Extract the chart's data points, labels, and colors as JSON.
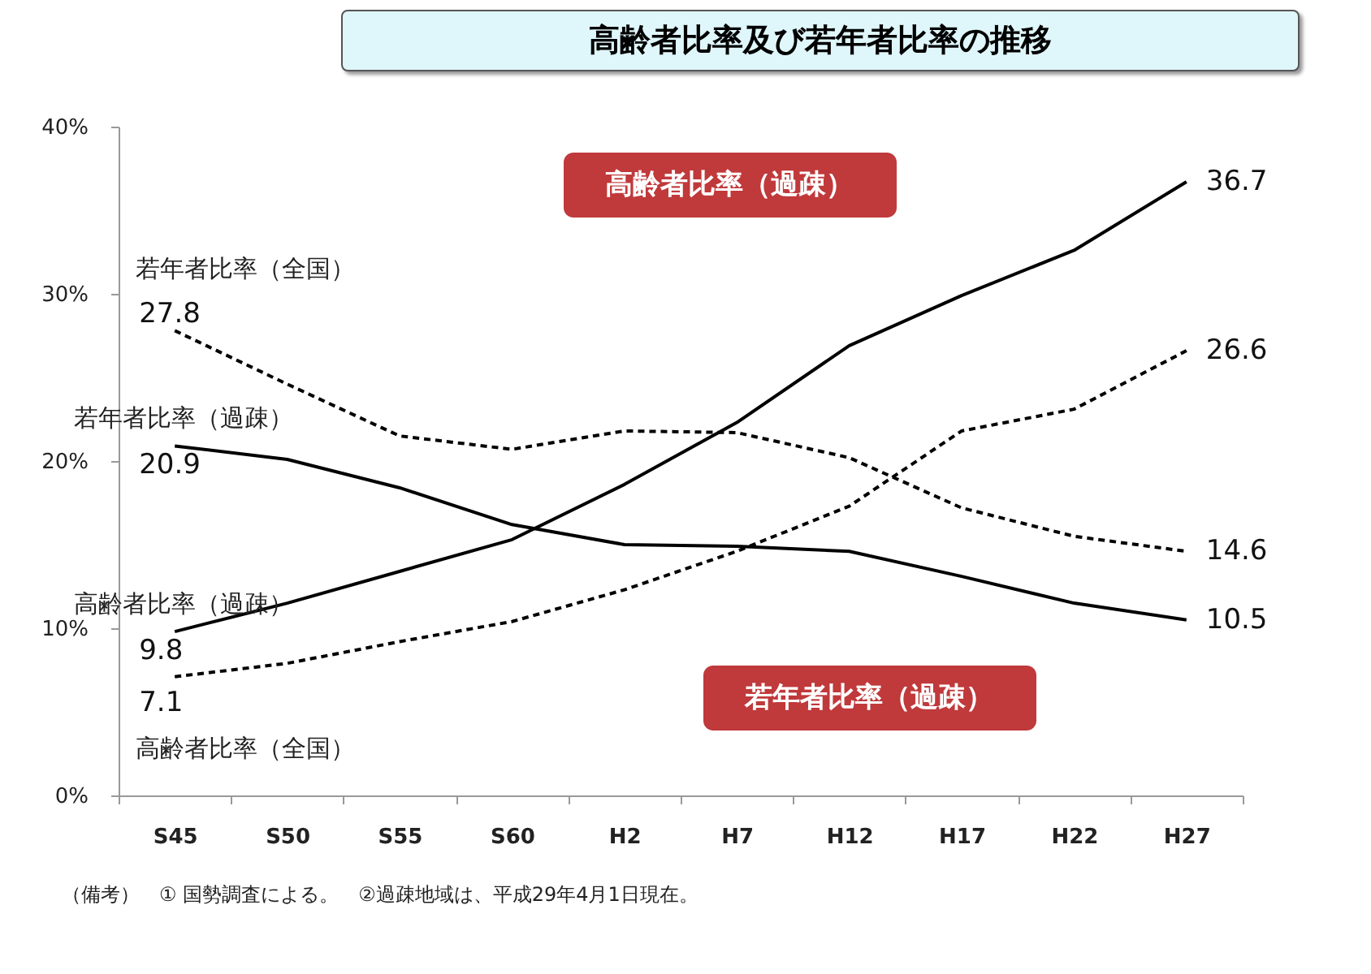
{
  "chart_data": {
    "type": "line",
    "title": "高齢者比率及び若年者比率の推移",
    "categories": [
      "S45",
      "S50",
      "S55",
      "S60",
      "H2",
      "H7",
      "H12",
      "H17",
      "H22",
      "H27"
    ],
    "ylim": [
      0,
      40
    ],
    "yticks": [
      {
        "value": 0,
        "label": "0%"
      },
      {
        "value": 10,
        "label": "10%"
      },
      {
        "value": 20,
        "label": "20%"
      },
      {
        "value": 30,
        "label": "30%"
      },
      {
        "value": 40,
        "label": "40%"
      }
    ],
    "grid": false,
    "series": [
      {
        "name": "若年者比率（全国）",
        "color": "#000000",
        "line_style": "dashed",
        "values": [
          27.8,
          24.6,
          21.5,
          20.7,
          21.8,
          21.7,
          20.2,
          17.2,
          15.5,
          14.6
        ],
        "value_labels": [
          "27.8",
          null,
          null,
          null,
          null,
          null,
          null,
          null,
          null,
          "14.6"
        ]
      },
      {
        "name": "若年者比率（過疎）",
        "color": "#000000",
        "line_style": "solid",
        "values": [
          20.9,
          20.1,
          18.4,
          16.2,
          15.0,
          14.9,
          14.6,
          13.1,
          11.5,
          10.5
        ],
        "value_labels": [
          "20.9",
          null,
          null,
          null,
          null,
          null,
          null,
          null,
          null,
          "10.5"
        ]
      },
      {
        "name": "高齢者比率（過疎）",
        "color": "#000000",
        "line_style": "solid",
        "values": [
          9.8,
          11.5,
          13.4,
          15.3,
          18.6,
          22.3,
          26.9,
          29.9,
          32.6,
          36.7
        ],
        "value_labels": [
          "9.8",
          null,
          null,
          null,
          null,
          null,
          null,
          null,
          null,
          "36.7"
        ]
      },
      {
        "name": "高齢者比率（全国）",
        "color": "#000000",
        "line_style": "dashed",
        "values": [
          7.1,
          7.9,
          9.2,
          10.4,
          12.3,
          14.6,
          17.3,
          21.8,
          23.1,
          26.6
        ],
        "value_labels": [
          "7.1",
          null,
          null,
          null,
          null,
          null,
          null,
          null,
          null,
          "26.6"
        ]
      }
    ],
    "annotations": [
      "高齢者比率（過疎）",
      "若年者比率（過疎）",
      "（備考）　① 国勢調査による。　②過疎地域は、平成29年4月1日現在。"
    ]
  }
}
